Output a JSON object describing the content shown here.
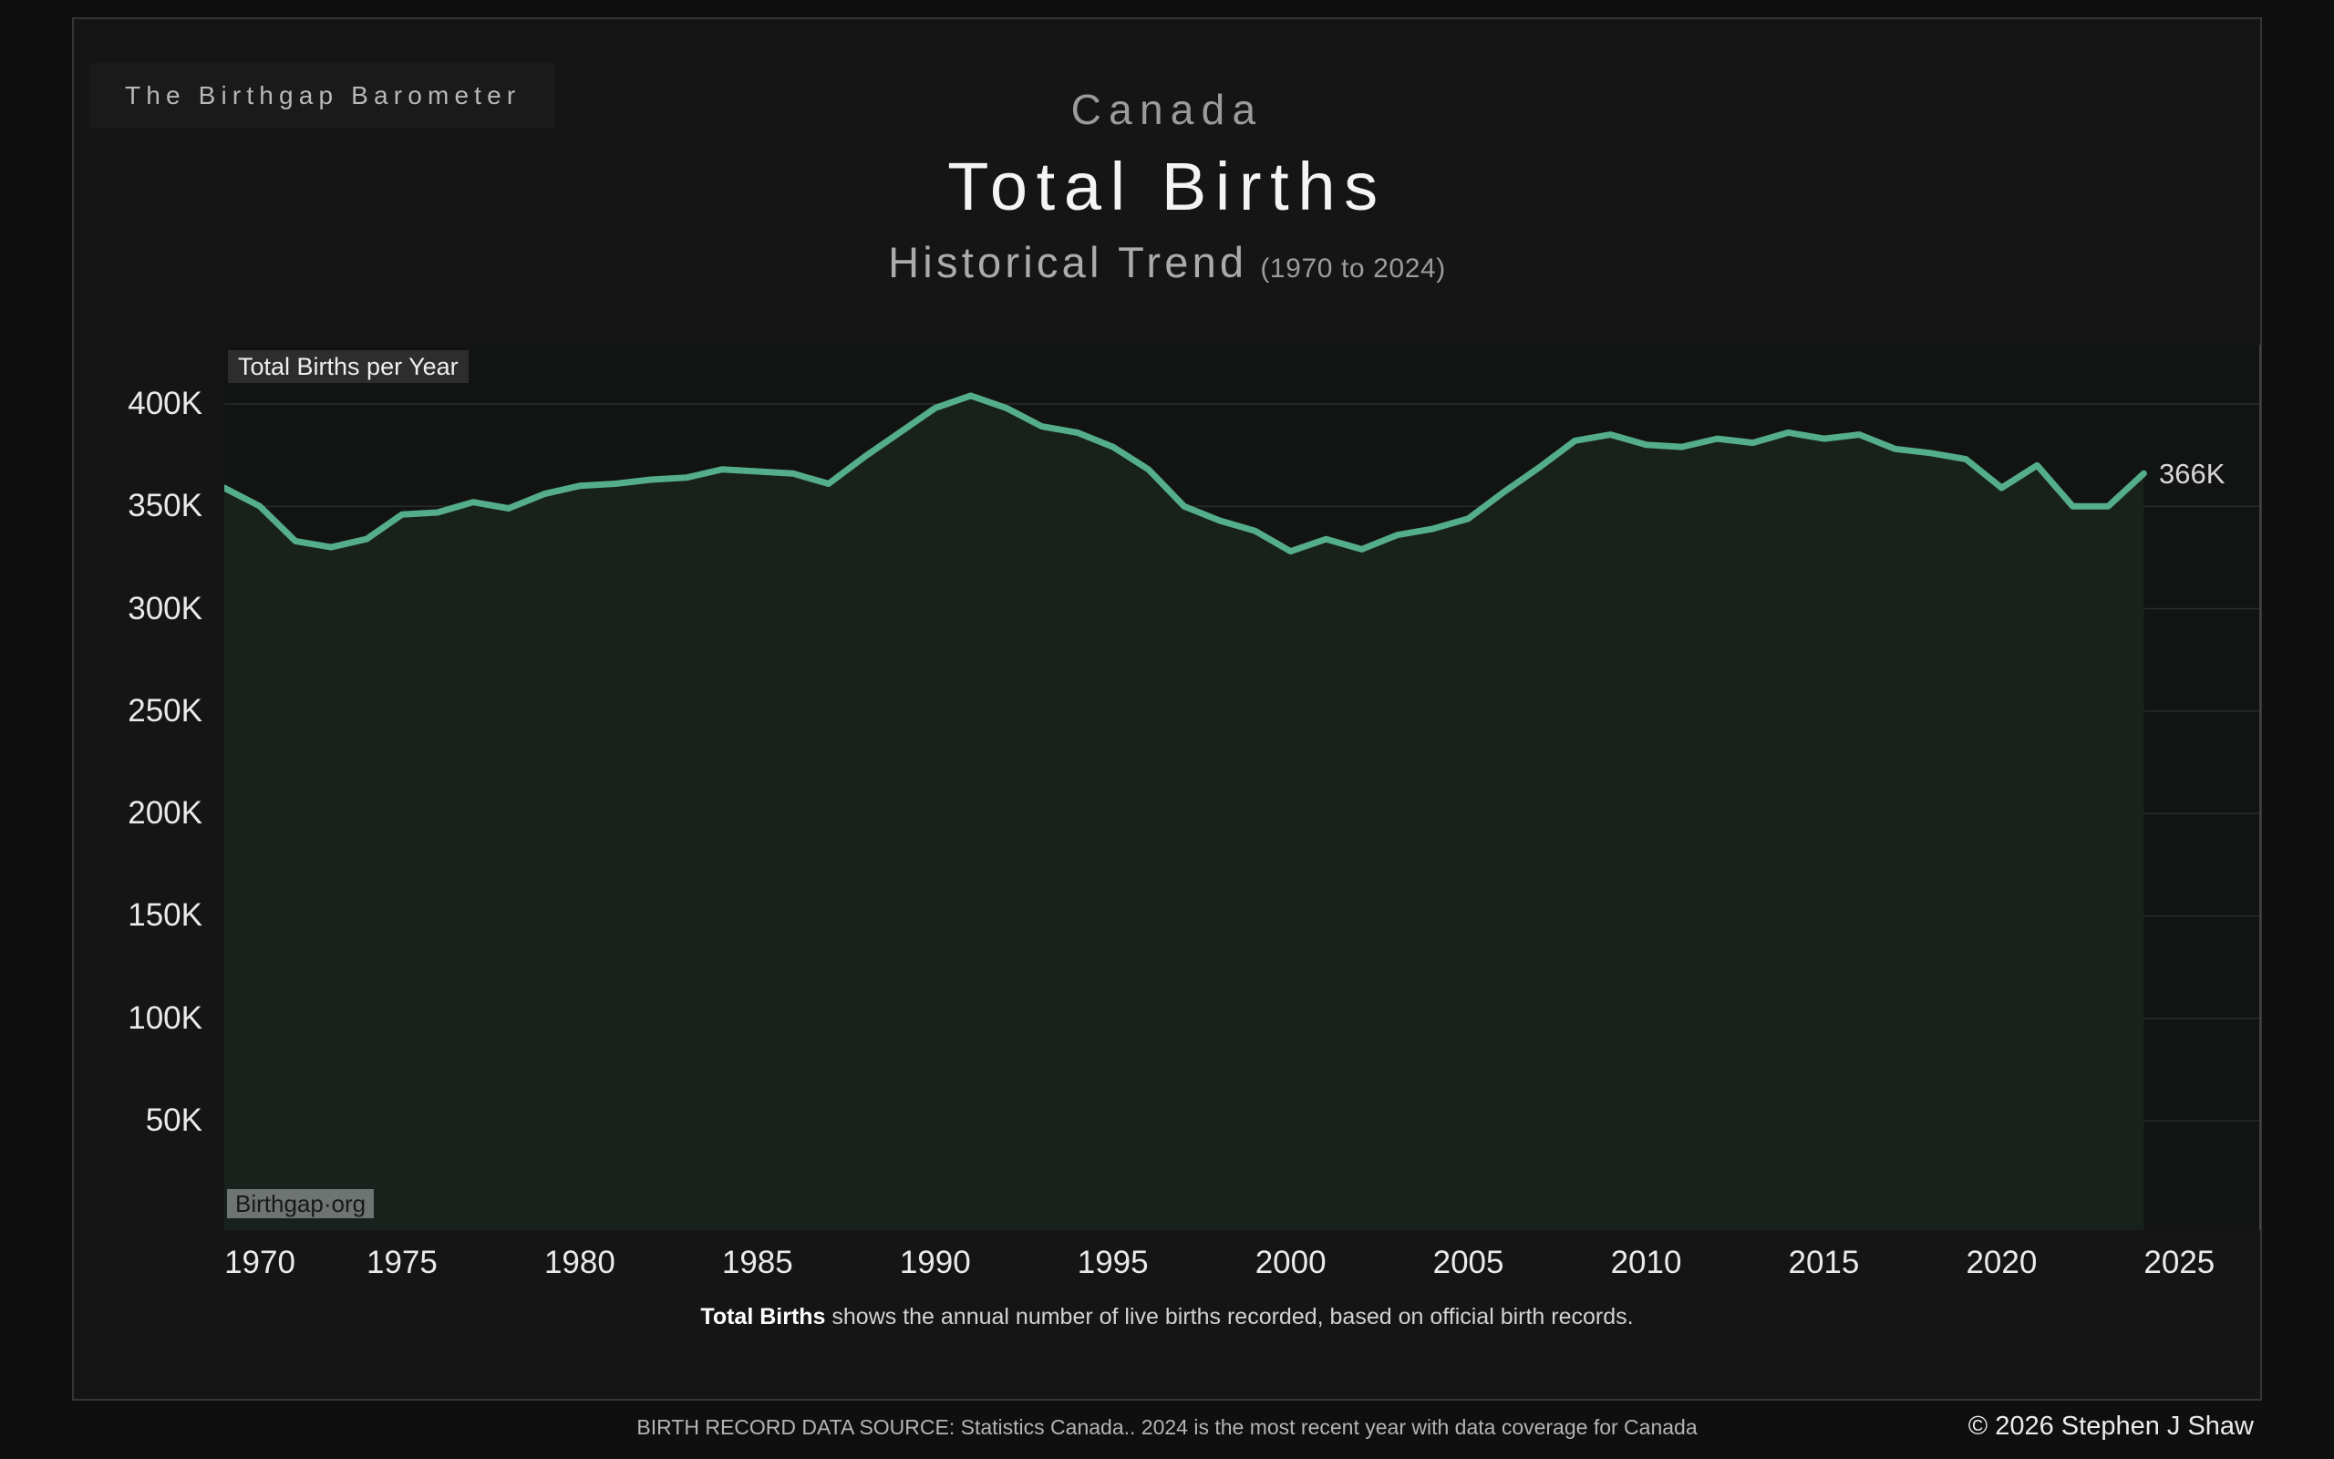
{
  "brand": {
    "label": "The Birthgap Barometer"
  },
  "header": {
    "country": "Canada",
    "title": "Total Births",
    "subtitle": "Historical Trend",
    "subtitle_range": "(1970 to 2024)"
  },
  "chart": {
    "series_label": "Total Births per Year",
    "watermark": "Birthgap·org",
    "end_label": "366K"
  },
  "caption": {
    "bold": "Total Births",
    "rest": " shows the annual number of live births recorded, based on official birth records."
  },
  "footer": {
    "source": "BIRTH RECORD DATA SOURCE: Statistics Canada.. 2024 is the most recent year with data coverage for Canada",
    "copyright": "© 2026 Stephen J Shaw"
  },
  "chart_data": {
    "type": "area",
    "title": "Total Births per Year",
    "unit": "thousands of births",
    "x": [
      1970,
      1971,
      1972,
      1973,
      1974,
      1975,
      1976,
      1977,
      1978,
      1979,
      1980,
      1981,
      1982,
      1983,
      1984,
      1985,
      1986,
      1987,
      1988,
      1989,
      1990,
      1991,
      1992,
      1993,
      1994,
      1995,
      1996,
      1997,
      1998,
      1999,
      2000,
      2001,
      2002,
      2003,
      2004,
      2005,
      2006,
      2007,
      2008,
      2009,
      2010,
      2011,
      2012,
      2013,
      2014,
      2015,
      2016,
      2017,
      2018,
      2019,
      2020,
      2021,
      2022,
      2023,
      2024
    ],
    "values": [
      359,
      350,
      333,
      330,
      334,
      346,
      347,
      352,
      349,
      356,
      360,
      361,
      363,
      364,
      368,
      367,
      366,
      361,
      374,
      386,
      398,
      404,
      398,
      389,
      386,
      379,
      368,
      350,
      343,
      338,
      328,
      334,
      329,
      336,
      339,
      344,
      357,
      369,
      382,
      385,
      380,
      379,
      383,
      381,
      386,
      383,
      385,
      378,
      376,
      373,
      359,
      370,
      350,
      350,
      366
    ],
    "yticks": [
      400,
      350,
      300,
      250,
      200,
      150,
      100,
      50
    ],
    "ytick_labels": [
      "400K",
      "350K",
      "300K",
      "250K",
      "200K",
      "150K",
      "100K",
      "50K"
    ],
    "xticks": [
      1970,
      1975,
      1980,
      1985,
      1990,
      1995,
      2000,
      2005,
      2010,
      2015,
      2020,
      2025
    ],
    "xlim": [
      1970,
      2027.3
    ],
    "ylim": [
      -3.4,
      428.9
    ],
    "grid": "horizontal",
    "legend": "none",
    "line_color": "#55ae8b",
    "area_color": "#18211c",
    "last_point_label": "366K"
  }
}
